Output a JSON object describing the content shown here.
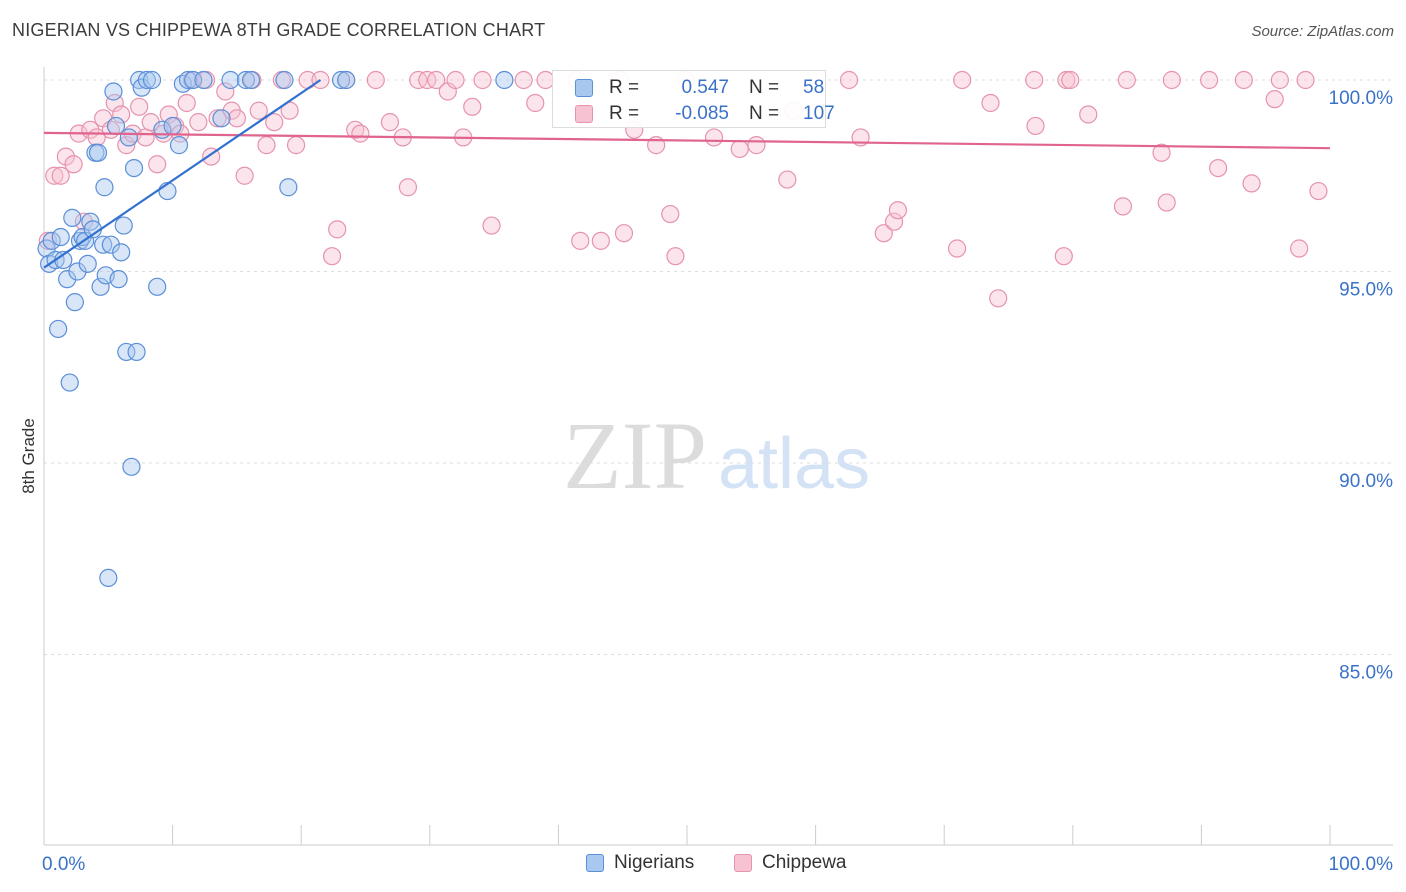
{
  "title": "NIGERIAN VS CHIPPEWA 8TH GRADE CORRELATION CHART",
  "source": "Source: ZipAtlas.com",
  "watermark": {
    "part1": "ZIP",
    "part2": "atlas"
  },
  "colors": {
    "nigerian_fill": "#a9c8f0",
    "nigerian_stroke": "#5b8fd8",
    "nigerian_line": "#3271cf",
    "chippewa_fill": "#f7c3d3",
    "chippewa_stroke": "#e693ad",
    "chippewa_line": "#e0648e",
    "axis_label": "#3a72c8",
    "grid": "#dddddd"
  },
  "legend": {
    "nigerian": {
      "r_label": "R =",
      "r_value": "0.547",
      "n_label": "N =",
      "n_value": "58"
    },
    "chippewa": {
      "r_label": "R =",
      "r_value": "-0.085",
      "n_label": "N =",
      "n_value": "107"
    }
  },
  "bottom_legend": {
    "nigerian": "Nigerians",
    "chippewa": "Chippewa"
  },
  "chart_data": {
    "type": "scatter",
    "title": "NIGERIAN VS CHIPPEWA 8TH GRADE CORRELATION CHART",
    "xlabel": "",
    "ylabel": "8th Grade",
    "xlim": [
      0,
      100
    ],
    "ylim": [
      80.5,
      100.5
    ],
    "x_tick_labels": [
      {
        "value": 0,
        "label": "0.0%"
      },
      {
        "value": 100,
        "label": "100.0%"
      }
    ],
    "y_ticks": [
      {
        "value": 100,
        "label": "100.0%"
      },
      {
        "value": 95,
        "label": "95.0%"
      },
      {
        "value": 90,
        "label": "90.0%"
      },
      {
        "value": 85,
        "label": "85.0%"
      }
    ],
    "grid": true,
    "series": [
      {
        "name": "Nigerians",
        "r": 0.547,
        "n": 58,
        "trend": {
          "x0": 0,
          "y0": 95.1,
          "x1": 21.5,
          "y1": 100.0
        },
        "points": [
          [
            0.2,
            95.6
          ],
          [
            0.4,
            95.2
          ],
          [
            0.6,
            95.8
          ],
          [
            0.9,
            95.3
          ],
          [
            1.1,
            93.5
          ],
          [
            1.3,
            95.9
          ],
          [
            1.5,
            95.3
          ],
          [
            1.8,
            94.8
          ],
          [
            2.0,
            92.1
          ],
          [
            2.2,
            96.4
          ],
          [
            2.4,
            94.2
          ],
          [
            2.6,
            95.0
          ],
          [
            2.8,
            95.8
          ],
          [
            3.0,
            95.9
          ],
          [
            3.2,
            95.8
          ],
          [
            3.4,
            95.2
          ],
          [
            3.6,
            96.3
          ],
          [
            3.8,
            96.1
          ],
          [
            4.0,
            98.1
          ],
          [
            4.2,
            98.1
          ],
          [
            4.4,
            94.6
          ],
          [
            4.6,
            95.7
          ],
          [
            4.7,
            97.2
          ],
          [
            4.8,
            94.9
          ],
          [
            5.0,
            87.0
          ],
          [
            5.2,
            95.7
          ],
          [
            5.4,
            99.7
          ],
          [
            5.6,
            98.8
          ],
          [
            5.8,
            94.8
          ],
          [
            6.0,
            95.5
          ],
          [
            6.2,
            96.2
          ],
          [
            6.4,
            92.9
          ],
          [
            6.6,
            98.5
          ],
          [
            6.8,
            89.9
          ],
          [
            7.0,
            97.7
          ],
          [
            7.2,
            92.9
          ],
          [
            7.4,
            100.0
          ],
          [
            7.6,
            99.8
          ],
          [
            8.0,
            100.0
          ],
          [
            8.4,
            100.0
          ],
          [
            8.8,
            94.6
          ],
          [
            9.2,
            98.7
          ],
          [
            9.6,
            97.1
          ],
          [
            10.0,
            98.8
          ],
          [
            10.5,
            98.3
          ],
          [
            10.8,
            99.9
          ],
          [
            11.2,
            100.0
          ],
          [
            11.6,
            100.0
          ],
          [
            12.4,
            100.0
          ],
          [
            13.8,
            99.0
          ],
          [
            14.5,
            100.0
          ],
          [
            15.7,
            100.0
          ],
          [
            16.1,
            100.0
          ],
          [
            18.7,
            100.0
          ],
          [
            19.0,
            97.2
          ],
          [
            23.1,
            100.0
          ],
          [
            23.5,
            100.0
          ],
          [
            35.8,
            100.0
          ]
        ]
      },
      {
        "name": "Chippewa",
        "r": -0.085,
        "n": 107,
        "trend": {
          "x0": 0,
          "y0": 98.62,
          "x1": 100,
          "y1": 98.22
        },
        "points": [
          [
            0.3,
            95.8
          ],
          [
            0.8,
            97.5
          ],
          [
            1.3,
            97.5
          ],
          [
            1.7,
            98.0
          ],
          [
            2.3,
            97.8
          ],
          [
            2.7,
            98.6
          ],
          [
            3.1,
            96.3
          ],
          [
            3.6,
            98.7
          ],
          [
            4.1,
            98.5
          ],
          [
            4.6,
            99.0
          ],
          [
            5.2,
            98.7
          ],
          [
            5.5,
            99.4
          ],
          [
            6.0,
            99.1
          ],
          [
            6.4,
            98.3
          ],
          [
            6.9,
            98.6
          ],
          [
            7.4,
            99.3
          ],
          [
            7.9,
            98.5
          ],
          [
            8.3,
            98.9
          ],
          [
            8.8,
            97.8
          ],
          [
            9.3,
            98.6
          ],
          [
            9.7,
            99.1
          ],
          [
            10.2,
            98.8
          ],
          [
            10.6,
            98.6
          ],
          [
            11.1,
            99.4
          ],
          [
            11.5,
            100.0
          ],
          [
            12.0,
            98.9
          ],
          [
            12.6,
            100.0
          ],
          [
            13.0,
            98.0
          ],
          [
            13.5,
            99.0
          ],
          [
            14.1,
            99.7
          ],
          [
            14.6,
            99.2
          ],
          [
            15.0,
            99.0
          ],
          [
            15.6,
            97.5
          ],
          [
            16.2,
            100.0
          ],
          [
            16.7,
            99.2
          ],
          [
            17.3,
            98.3
          ],
          [
            17.9,
            98.9
          ],
          [
            18.5,
            100.0
          ],
          [
            19.1,
            99.2
          ],
          [
            19.6,
            98.3
          ],
          [
            20.5,
            100.0
          ],
          [
            21.5,
            100.0
          ],
          [
            22.4,
            95.4
          ],
          [
            22.8,
            96.1
          ],
          [
            23.5,
            100.0
          ],
          [
            24.2,
            98.7
          ],
          [
            24.6,
            98.6
          ],
          [
            25.8,
            100.0
          ],
          [
            26.9,
            98.9
          ],
          [
            27.9,
            98.5
          ],
          [
            28.3,
            97.2
          ],
          [
            29.1,
            100.0
          ],
          [
            29.8,
            100.0
          ],
          [
            30.5,
            100.0
          ],
          [
            31.4,
            99.7
          ],
          [
            32.0,
            100.0
          ],
          [
            32.6,
            98.5
          ],
          [
            33.3,
            99.3
          ],
          [
            34.1,
            100.0
          ],
          [
            34.8,
            96.2
          ],
          [
            37.3,
            100.0
          ],
          [
            38.2,
            99.4
          ],
          [
            39.0,
            100.0
          ],
          [
            41.4,
            100.0
          ],
          [
            41.7,
            95.8
          ],
          [
            43.3,
            95.8
          ],
          [
            44.8,
            100.0
          ],
          [
            45.1,
            96.0
          ],
          [
            45.9,
            98.7
          ],
          [
            47.6,
            98.3
          ],
          [
            48.7,
            96.5
          ],
          [
            49.1,
            95.4
          ],
          [
            49.9,
            100.0
          ],
          [
            52.1,
            98.5
          ],
          [
            54.1,
            98.2
          ],
          [
            55.4,
            98.3
          ],
          [
            57.8,
            97.4
          ],
          [
            58.3,
            99.2
          ],
          [
            62.6,
            100.0
          ],
          [
            63.5,
            98.5
          ],
          [
            65.3,
            96.0
          ],
          [
            66.1,
            96.3
          ],
          [
            66.4,
            96.6
          ],
          [
            71.0,
            95.6
          ],
          [
            71.4,
            100.0
          ],
          [
            73.6,
            99.4
          ],
          [
            74.2,
            94.3
          ],
          [
            77.0,
            100.0
          ],
          [
            77.1,
            98.8
          ],
          [
            79.3,
            95.4
          ],
          [
            79.5,
            100.0
          ],
          [
            79.8,
            100.0
          ],
          [
            81.2,
            99.1
          ],
          [
            83.9,
            96.7
          ],
          [
            84.2,
            100.0
          ],
          [
            86.9,
            98.1
          ],
          [
            87.3,
            96.8
          ],
          [
            87.7,
            100.0
          ],
          [
            90.6,
            100.0
          ],
          [
            91.3,
            97.7
          ],
          [
            93.3,
            100.0
          ],
          [
            93.9,
            97.3
          ],
          [
            95.7,
            99.5
          ],
          [
            96.1,
            100.0
          ],
          [
            97.6,
            95.6
          ],
          [
            98.1,
            100.0
          ],
          [
            99.1,
            97.1
          ]
        ]
      }
    ]
  }
}
